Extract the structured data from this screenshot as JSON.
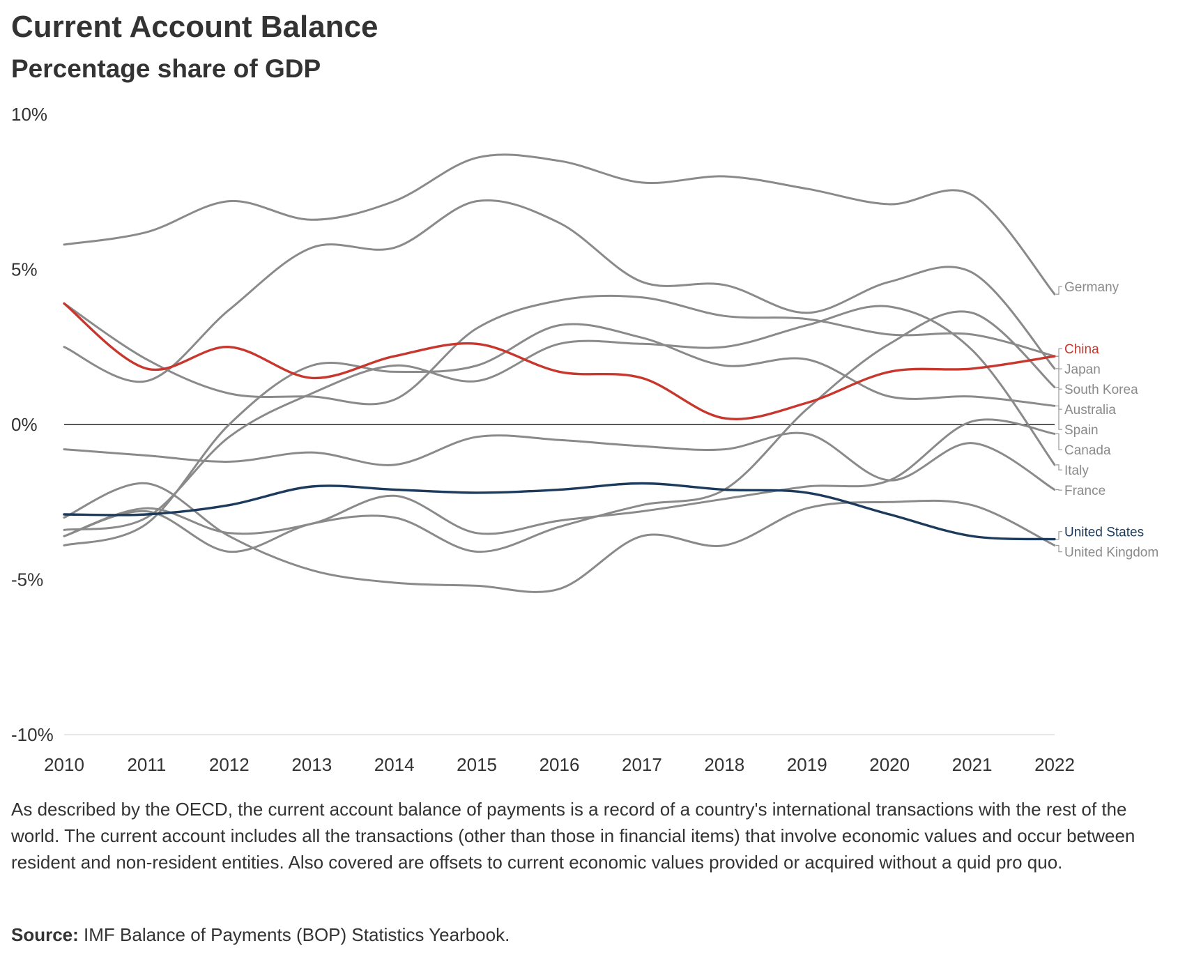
{
  "title": "Current Account Balance",
  "subtitle": "Percentage share of GDP",
  "description": "As described by the OECD, the current account balance of payments is a record of a country's international transactions with the rest of the world. The current account includes all the transactions (other than those in financial items) that involve economic values and occur between resident and non-resident entities. Also covered are offsets to current economic values provided or acquired without a quid pro quo.",
  "source_label": "Source:",
  "source_text": " IMF Balance of Payments (BOP) Statistics Yearbook.",
  "colors": {
    "default_series": "#8a8a8a",
    "china": "#c8372d",
    "united_states": "#1b3a5c",
    "zero_line": "#222222",
    "axis_text": "#333333",
    "baseline": "#dddddd"
  },
  "chart_data": {
    "type": "line",
    "title": "Current Account Balance",
    "subtitle": "Percentage share of GDP",
    "xlabel": "",
    "ylabel": "",
    "x": [
      2010,
      2011,
      2012,
      2013,
      2014,
      2015,
      2016,
      2017,
      2018,
      2019,
      2020,
      2021,
      2022
    ],
    "x_ticks": [
      "2010",
      "2011",
      "2012",
      "2013",
      "2014",
      "2015",
      "2016",
      "2017",
      "2018",
      "2019",
      "2020",
      "2021",
      "2022"
    ],
    "ylim": [
      -10,
      10
    ],
    "y_ticks": [
      {
        "value": 10,
        "label": "10%"
      },
      {
        "value": 5,
        "label": "5%"
      },
      {
        "value": 0,
        "label": "0%"
      },
      {
        "value": -5,
        "label": "-5%"
      },
      {
        "value": -10,
        "label": "-10%"
      }
    ],
    "series": [
      {
        "name": "Germany",
        "color": "#8a8a8a",
        "values": [
          5.8,
          6.2,
          7.2,
          6.6,
          7.2,
          8.6,
          8.5,
          7.8,
          8.0,
          7.6,
          7.1,
          7.4,
          4.2
        ]
      },
      {
        "name": "China",
        "color": "#c8372d",
        "values": [
          3.9,
          1.8,
          2.5,
          1.5,
          2.2,
          2.6,
          1.7,
          1.5,
          0.2,
          0.7,
          1.7,
          1.8,
          2.2
        ]
      },
      {
        "name": "Japan",
        "color": "#8a8a8a",
        "values": [
          3.9,
          2.1,
          1.0,
          0.9,
          0.8,
          3.1,
          4.0,
          4.1,
          3.5,
          3.4,
          2.9,
          2.9,
          2.2
        ]
      },
      {
        "name": "South Korea",
        "color": "#8a8a8a",
        "values": [
          2.5,
          1.4,
          3.7,
          5.7,
          5.7,
          7.2,
          6.5,
          4.6,
          4.5,
          3.6,
          4.6,
          4.9,
          1.8
        ]
      },
      {
        "name": "Australia",
        "color": "#8a8a8a",
        "values": [
          -3.6,
          -2.8,
          -4.1,
          -3.2,
          -3.0,
          -4.1,
          -3.3,
          -2.6,
          -2.1,
          0.5,
          2.6,
          3.6,
          1.2
        ]
      },
      {
        "name": "Spain",
        "color": "#8a8a8a",
        "values": [
          -3.9,
          -3.2,
          0.0,
          1.9,
          1.7,
          1.9,
          3.2,
          2.8,
          1.9,
          2.1,
          0.9,
          0.9,
          0.6
        ]
      },
      {
        "name": "Canada",
        "color": "#8a8a8a",
        "values": [
          -3.6,
          -2.7,
          -3.5,
          -3.2,
          -2.3,
          -3.5,
          -3.1,
          -2.8,
          -2.4,
          -2.0,
          -1.8,
          0.1,
          -0.3
        ]
      },
      {
        "name": "Italy",
        "color": "#8a8a8a",
        "values": [
          -3.4,
          -3.0,
          -0.4,
          1.0,
          1.9,
          1.4,
          2.6,
          2.6,
          2.5,
          3.2,
          3.8,
          2.4,
          -1.3
        ]
      },
      {
        "name": "France",
        "color": "#8a8a8a",
        "values": [
          -0.8,
          -1.0,
          -1.2,
          -0.9,
          -1.3,
          -0.4,
          -0.5,
          -0.7,
          -0.8,
          -0.3,
          -1.8,
          -0.6,
          -2.1
        ]
      },
      {
        "name": "United States",
        "color": "#1b3a5c",
        "values": [
          -2.9,
          -2.9,
          -2.6,
          -2.0,
          -2.1,
          -2.2,
          -2.1,
          -1.9,
          -2.1,
          -2.2,
          -2.9,
          -3.6,
          -3.7
        ]
      },
      {
        "name": "United Kingdom",
        "color": "#8a8a8a",
        "values": [
          -3.0,
          -1.9,
          -3.6,
          -4.7,
          -5.1,
          -5.2,
          -5.3,
          -3.6,
          -3.9,
          -2.7,
          -2.5,
          -2.6,
          -3.9
        ]
      }
    ],
    "legend": "end-of-line labels on the right",
    "end_labels": [
      {
        "name": "Germany",
        "color": "#8a8a8a"
      },
      {
        "name": "China",
        "color": "#c8372d"
      },
      {
        "name": "Japan",
        "color": "#8a8a8a"
      },
      {
        "name": "South Korea",
        "color": "#8a8a8a"
      },
      {
        "name": "Australia",
        "color": "#8a8a8a"
      },
      {
        "name": "Spain",
        "color": "#8a8a8a"
      },
      {
        "name": "Canada",
        "color": "#8a8a8a"
      },
      {
        "name": "Italy",
        "color": "#8a8a8a"
      },
      {
        "name": "France",
        "color": "#8a8a8a"
      },
      {
        "name": "United States",
        "color": "#1b3a5c"
      },
      {
        "name": "United Kingdom",
        "color": "#8a8a8a"
      }
    ]
  }
}
